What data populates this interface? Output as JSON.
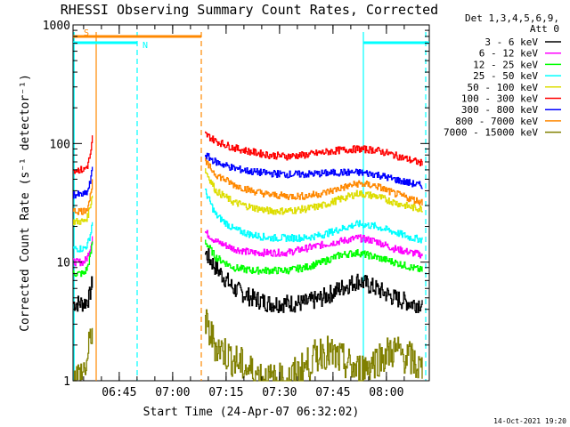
{
  "chart_data": {
    "type": "line",
    "title": "RHESSI Observing Summary Count Rates, Corrected",
    "xlabel": "Start Time (24-Apr-07 06:32:02)",
    "ylabel": "Corrected Count Rate (s⁻¹ detector⁻¹)",
    "yscale": "log",
    "ylim": [
      1,
      1000
    ],
    "xlim_minutes_after_06_32_02": [
      0,
      100
    ],
    "x_ticks": [
      "06:45",
      "07:00",
      "07:15",
      "07:30",
      "07:45",
      "08:00"
    ],
    "x_tick_minutes": [
      12.97,
      27.97,
      42.97,
      57.97,
      72.97,
      87.97
    ],
    "y_ticks": [
      "1",
      "10",
      "100",
      "1000"
    ],
    "y_tick_values": [
      1,
      10,
      100,
      1000
    ],
    "legend_title": [
      "Det 1,3,4,5,6,9,",
      "Att 0"
    ],
    "legend_position": "right",
    "series": [
      {
        "name": "3 - 6 keV",
        "color": "#000000",
        "segments": [
          {
            "x": [
              0,
              3,
              4.5,
              5,
              5.5
            ],
            "y": [
              4.5,
              4.5,
              5,
              6,
              7
            ]
          },
          {
            "x": [
              37,
              40,
              45,
              50,
              55,
              60,
              65,
              70,
              75,
              80,
              85,
              90,
              95,
              98
            ],
            "y": [
              12,
              9,
              6,
              5,
              4.5,
              4.5,
              4.5,
              5,
              6,
              7,
              6,
              5,
              4.5,
              4.5
            ]
          }
        ]
      },
      {
        "name": "6 - 12 keV",
        "color": "#ff00ff",
        "segments": [
          {
            "x": [
              0,
              3,
              4,
              5,
              5.5
            ],
            "y": [
              10,
              10,
              11,
              14,
              18
            ]
          },
          {
            "x": [
              37,
              40,
              45,
              50,
              55,
              60,
              65,
              70,
              75,
              80,
              85,
              90,
              95,
              98
            ],
            "y": [
              18,
              15,
              13,
              12,
              12,
              12,
              13,
              14,
              15,
              16,
              15,
              13,
              12,
              11.5
            ]
          }
        ]
      },
      {
        "name": "12 - 25 keV",
        "color": "#00ff00",
        "segments": [
          {
            "x": [
              0,
              3,
              4,
              5,
              5.5
            ],
            "y": [
              8,
              8,
              9,
              12,
              16
            ]
          },
          {
            "x": [
              37,
              40,
              45,
              50,
              55,
              60,
              65,
              70,
              75,
              80,
              85,
              90,
              95,
              98
            ],
            "y": [
              15,
              11,
              9,
              8.5,
              8.5,
              8.5,
              9,
              10,
              11.5,
              12,
              11,
              10,
              9,
              8.5
            ]
          }
        ]
      },
      {
        "name": "25 - 50 keV",
        "color": "#00ffff",
        "segments": [
          {
            "x": [
              0,
              3,
              4,
              5,
              5.5
            ],
            "y": [
              13,
              13,
              14,
              18,
              24
            ]
          },
          {
            "x": [
              37,
              40,
              45,
              50,
              55,
              60,
              65,
              70,
              75,
              80,
              85,
              90,
              95,
              98
            ],
            "y": [
              40,
              25,
              19,
              17,
              16,
              16,
              16,
              17,
              19,
              21,
              20,
              18,
              16,
              15.5
            ]
          }
        ]
      },
      {
        "name": "50 - 100 keV",
        "color": "#dddd00",
        "segments": [
          {
            "x": [
              0,
              3,
              4,
              5,
              5.5
            ],
            "y": [
              22,
              22,
              24,
              32,
              40
            ]
          },
          {
            "x": [
              37,
              40,
              45,
              50,
              55,
              60,
              65,
              70,
              75,
              80,
              85,
              90,
              95,
              98
            ],
            "y": [
              60,
              40,
              32,
              29,
              27,
              27,
              28,
              30,
              34,
              38,
              36,
              32,
              29,
              28
            ]
          }
        ]
      },
      {
        "name": "100 - 300 keV",
        "color": "#ff0000",
        "segments": [
          {
            "x": [
              0,
              3,
              4,
              5,
              5.5
            ],
            "y": [
              60,
              60,
              65,
              85,
              120
            ]
          },
          {
            "x": [
              37,
              40,
              45,
              50,
              55,
              60,
              65,
              70,
              75,
              80,
              85,
              90,
              95,
              98
            ],
            "y": [
              120,
              105,
              92,
              85,
              80,
              78,
              80,
              84,
              88,
              90,
              88,
              80,
              72,
              68
            ]
          }
        ]
      },
      {
        "name": "300 - 800 keV",
        "color": "#0000ff",
        "segments": [
          {
            "x": [
              0,
              3,
              4,
              5,
              5.5
            ],
            "y": [
              37,
              37,
              39,
              50,
              70
            ]
          },
          {
            "x": [
              37,
              40,
              45,
              50,
              55,
              60,
              65,
              70,
              75,
              80,
              85,
              90,
              95,
              98
            ],
            "y": [
              80,
              70,
              62,
              58,
              56,
              55,
              55,
              56,
              57,
              57,
              55,
              50,
              46,
              44
            ]
          }
        ]
      },
      {
        "name": "800 - 7000 keV",
        "color": "#ff8800",
        "segments": [
          {
            "x": [
              0,
              3,
              4,
              5,
              5.5
            ],
            "y": [
              27,
              27,
              29,
              38,
              55
            ]
          },
          {
            "x": [
              37,
              40,
              45,
              50,
              55,
              60,
              65,
              70,
              75,
              80,
              85,
              90,
              95,
              98
            ],
            "y": [
              70,
              55,
              45,
              40,
              37,
              36,
              36,
              38,
              42,
              46,
              44,
              38,
              34,
              32
            ]
          }
        ]
      },
      {
        "name": "7000 - 15000 keV",
        "color": "#808000",
        "segments": [
          {
            "x": [
              0,
              3,
              4,
              5,
              5.5
            ],
            "y": [
              1,
              1.2,
              1.5,
              2.5,
              3
            ]
          },
          {
            "x": [
              37,
              40,
              45,
              50,
              55,
              60,
              65,
              70,
              75,
              80,
              85,
              90,
              95,
              98
            ],
            "y": [
              3,
              2,
              1.5,
              1.2,
              1,
              1,
              1.3,
              1.8,
              1.5,
              1.2,
              1.5,
              1.8,
              1.5,
              1.2
            ]
          }
        ]
      }
    ],
    "flag_bars": [
      {
        "label": "S",
        "color": "#ff8800",
        "x": [
          0,
          36
        ],
        "level": "top"
      },
      {
        "label": "N",
        "color": "#00ffff",
        "x": [
          0,
          18
        ],
        "level": "second"
      },
      {
        "label": "",
        "color": "#00ffff",
        "x": [
          81.5,
          100
        ],
        "level": "second"
      }
    ],
    "vlines": [
      {
        "x": 0.3,
        "color": "#00ffff",
        "style": "solid"
      },
      {
        "x": 6.5,
        "color": "#ff8800",
        "style": "solid"
      },
      {
        "x": 18,
        "color": "#00ffff",
        "style": "dashed"
      },
      {
        "x": 36,
        "color": "#ff8800",
        "style": "dashed"
      },
      {
        "x": 81.5,
        "color": "#00ffff",
        "style": "solid"
      },
      {
        "x": 99,
        "color": "#00ffff",
        "style": "dashed"
      }
    ]
  },
  "footer_timestamp": "14-Oct-2021 19:20"
}
